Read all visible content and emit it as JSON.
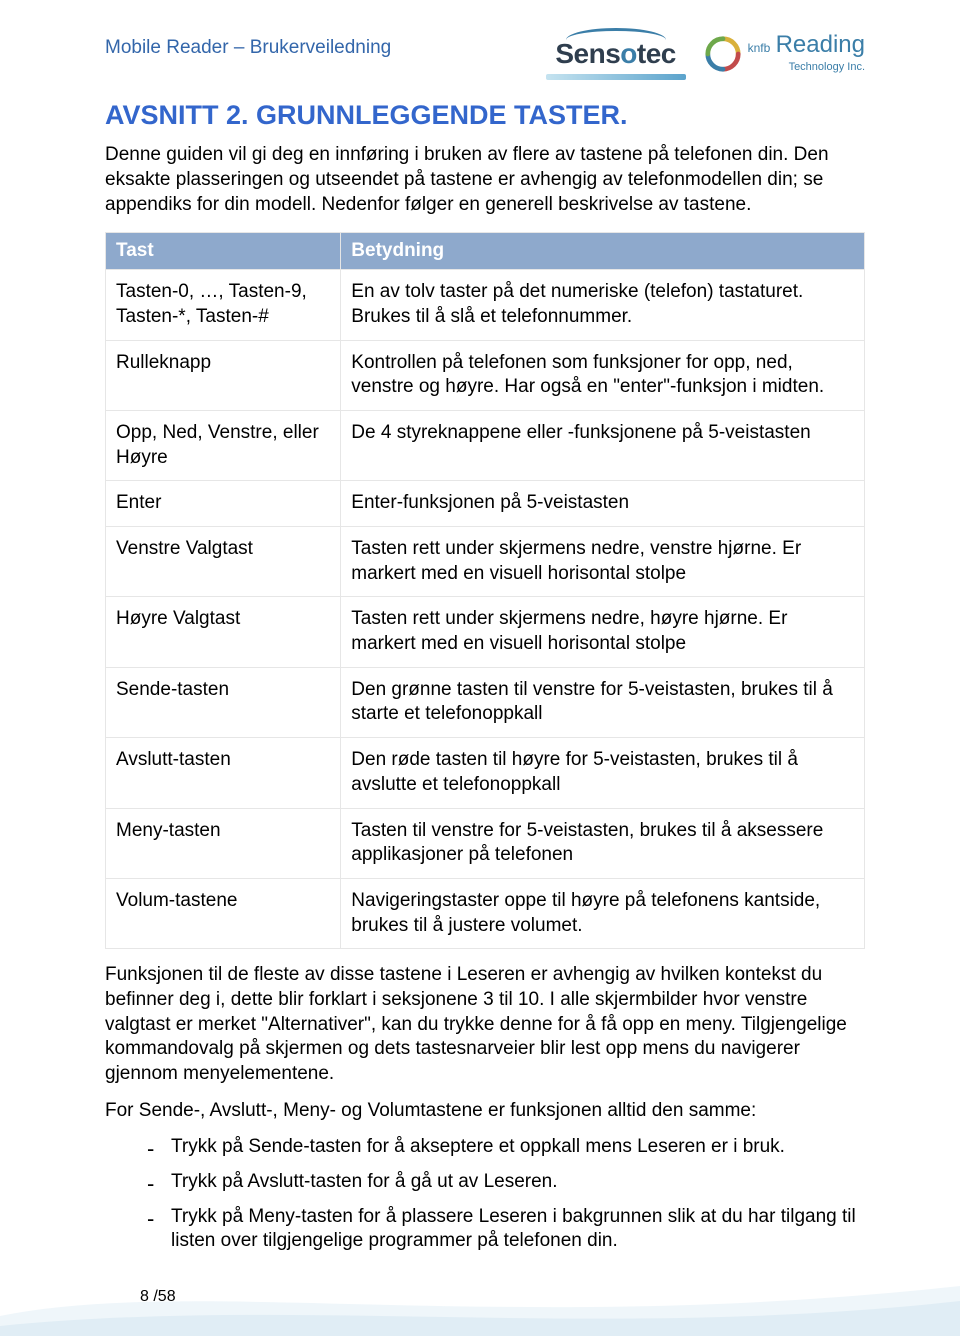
{
  "header": {
    "doc_title": "Mobile Reader – Brukerveiledning",
    "sensotec_label": "Sensotec",
    "knfb_prefix": "knfb",
    "knfb_main": "Reading",
    "knfb_sub": "Technology Inc.",
    "colors": {
      "title_color": "#3366aa",
      "heading_color": "#3366cc",
      "th_bg": "#8ea9cc",
      "th_text": "#ffffff",
      "border": "#e6e6e6",
      "body_text": "#000000"
    }
  },
  "heading": "AVSNITT 2. GRUNNLEGGENDE TASTER.",
  "intro": "Denne guiden vil gi deg en innføring i bruken av flere av tastene på telefonen din. Den eksakte plasseringen og utseendet på tastene er avhengig av telefonmodellen din; se appendiks for din modell. Nedenfor følger en generell beskrivelse av tastene.",
  "table": {
    "col1_header": "Tast",
    "col2_header": "Betydning",
    "rows": [
      {
        "key": "Tasten-0, …, Tasten-9, Tasten-*, Tasten-#",
        "meaning": "En av tolv taster på det numeriske (telefon) tastaturet. Brukes til å slå et telefonnummer."
      },
      {
        "key": "Rulleknapp",
        "meaning": "Kontrollen på telefonen som funksjoner for opp, ned, venstre og høyre. Har også en \"enter\"-funksjon i midten."
      },
      {
        "key": "Opp, Ned, Venstre, eller Høyre",
        "meaning": "De 4 styreknappene eller -funksjonene på 5-veistasten"
      },
      {
        "key": "Enter",
        "meaning": "Enter-funksjonen på 5-veistasten"
      },
      {
        "key": "Venstre Valgtast",
        "meaning": "Tasten rett under skjermens nedre, venstre hjørne. Er markert med en visuell horisontal stolpe"
      },
      {
        "key": "Høyre Valgtast",
        "meaning": "Tasten rett under skjermens nedre, høyre hjørne. Er markert med en visuell horisontal stolpe"
      },
      {
        "key": "Sende-tasten",
        "meaning": "Den grønne tasten til venstre for 5-veistasten, brukes til å starte et telefonoppkall"
      },
      {
        "key": "Avslutt-tasten",
        "meaning": "Den røde tasten til høyre for 5-veistasten, brukes til å avslutte et telefonoppkall"
      },
      {
        "key": "Meny-tasten",
        "meaning": "Tasten til venstre for 5-veistasten, brukes til å aksessere applikasjoner på telefonen"
      },
      {
        "key": "Volum-tastene",
        "meaning": "Navigeringstaster oppe til høyre på telefonens kantside, brukes til å justere volumet."
      }
    ]
  },
  "para1": "Funksjonen til de fleste av disse tastene i Leseren er avhengig av hvilken kontekst du befinner deg i, dette blir forklart i seksjonene 3 til 10. I alle skjermbilder hvor venstre valgtast er merket \"Alternativer\", kan du trykke denne for å få opp en meny. Tilgjengelige kommandovalg på skjermen og dets tastesnarveier blir lest opp mens du navigerer gjennom menyelementene.",
  "para2": "For Sende-, Avslutt-, Meny- og Volumtastene er funksjonen alltid den samme:",
  "bullets": [
    "Trykk på Sende-tasten for å akseptere et oppkall mens Leseren er i bruk.",
    "Trykk på Avslutt-tasten for å gå ut av Leseren.",
    "Trykk på Meny-tasten for å plassere Leseren i bakgrunnen slik at du har tilgang til listen over tilgjengelige programmer på telefonen din."
  ],
  "page_number": "8 /58"
}
